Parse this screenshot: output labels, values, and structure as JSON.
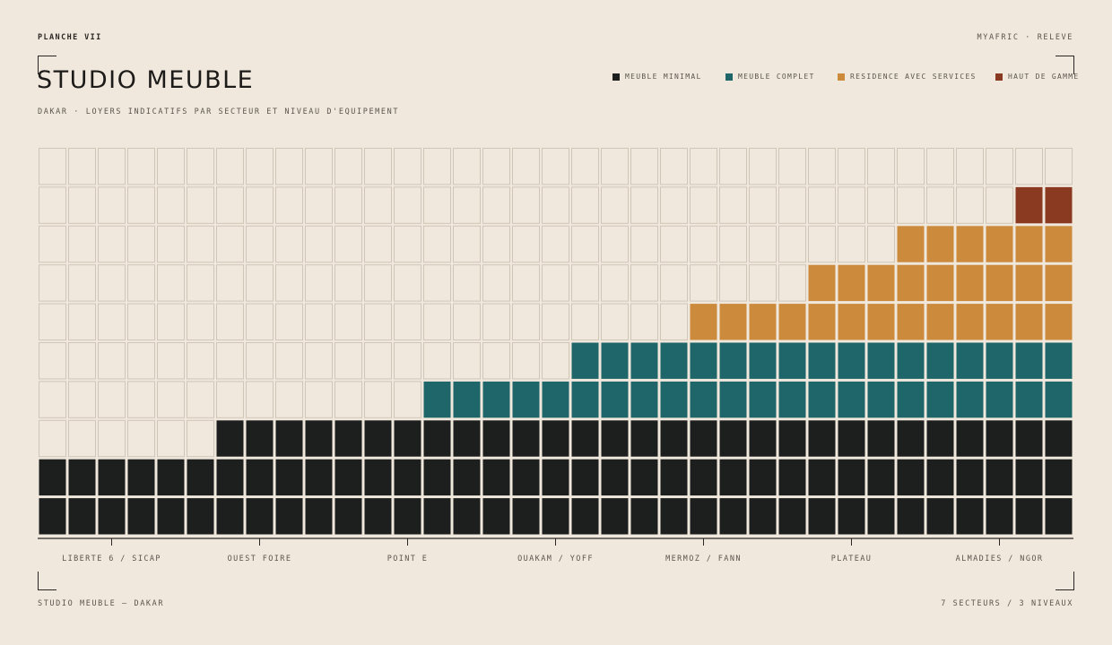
{
  "header": {
    "plate": "PLANCHE VII",
    "brand": "MYAFRIC · RELEVE",
    "title": "STUDIO MEUBLE",
    "subtitle": "DAKAR · LOYERS INDICATIFS PAR SECTEUR ET NIVEAU D'EQUIPEMENT"
  },
  "footer": {
    "left": "STUDIO MEUBLE — DAKAR",
    "right": "7 SECTEURS / 3 NIVEAUX"
  },
  "colors": {
    "background": "#f0e8dc",
    "empty_cell_border": "#cfc6b8",
    "meuble_minimal": "#1d1f1e",
    "meuble_complet": "#1e6669",
    "residence_services": "#cc8a3c",
    "haut_de_gamme": "#8b3a22"
  },
  "chart_data": {
    "type": "waffle-column",
    "rows": 10,
    "columns": 35,
    "legend": [
      {
        "name": "MEUBLE MINIMAL",
        "color": "#1d1f1e"
      },
      {
        "name": "MEUBLE COMPLET",
        "color": "#1e6669"
      },
      {
        "name": "RESIDENCE AVEC SERVICES",
        "color": "#cc8a3c"
      },
      {
        "name": "HAUT DE GAMME",
        "color": "#8b3a22"
      }
    ],
    "categories": [
      "LIBERTE 6 / SICAP",
      "OUEST FOIRE",
      "POINT E",
      "OUAKAM / YOFF",
      "MERMOZ / FANN",
      "PLATEAU",
      "ALMADIES / NGOR"
    ],
    "column_stacks": [
      [
        2,
        0,
        0,
        0
      ],
      [
        2,
        0,
        0,
        0
      ],
      [
        2,
        0,
        0,
        0
      ],
      [
        2,
        0,
        0,
        0
      ],
      [
        2,
        0,
        0,
        0
      ],
      [
        2,
        0,
        0,
        0
      ],
      [
        3,
        0,
        0,
        0
      ],
      [
        3,
        0,
        0,
        0
      ],
      [
        3,
        0,
        0,
        0
      ],
      [
        3,
        0,
        0,
        0
      ],
      [
        3,
        0,
        0,
        0
      ],
      [
        3,
        0,
        0,
        0
      ],
      [
        3,
        0,
        0,
        0
      ],
      [
        3,
        1,
        0,
        0
      ],
      [
        3,
        1,
        0,
        0
      ],
      [
        3,
        1,
        0,
        0
      ],
      [
        3,
        1,
        0,
        0
      ],
      [
        3,
        1,
        0,
        0
      ],
      [
        3,
        2,
        0,
        0
      ],
      [
        3,
        2,
        0,
        0
      ],
      [
        3,
        2,
        0,
        0
      ],
      [
        3,
        2,
        0,
        0
      ],
      [
        3,
        2,
        1,
        0
      ],
      [
        3,
        2,
        1,
        0
      ],
      [
        3,
        2,
        1,
        0
      ],
      [
        3,
        2,
        1,
        0
      ],
      [
        3,
        2,
        2,
        0
      ],
      [
        3,
        2,
        2,
        0
      ],
      [
        3,
        2,
        2,
        0
      ],
      [
        3,
        2,
        3,
        0
      ],
      [
        3,
        2,
        3,
        0
      ],
      [
        3,
        2,
        3,
        0
      ],
      [
        3,
        2,
        3,
        0
      ],
      [
        3,
        2,
        3,
        1
      ],
      [
        3,
        2,
        3,
        1
      ]
    ]
  }
}
